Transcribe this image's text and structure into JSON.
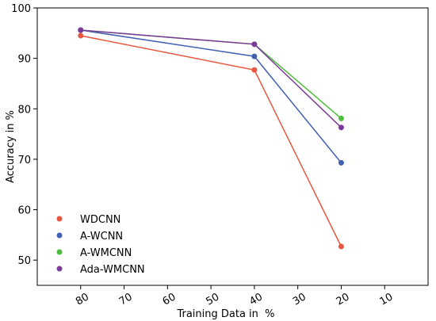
{
  "chart_data": {
    "type": "line",
    "title": "",
    "xlabel": "Training Data in  %",
    "ylabel": "Accuracy in %",
    "x": [
      80,
      40,
      20
    ],
    "xlim": [
      90,
      0
    ],
    "ylim": [
      45,
      100
    ],
    "xticks": [
      80,
      70,
      60,
      50,
      40,
      30,
      20,
      10
    ],
    "yticks": [
      50,
      60,
      70,
      80,
      90,
      100
    ],
    "grid": false,
    "legend_position": "lower-left",
    "series": [
      {
        "name": "WDCNN",
        "color": "#e8573f",
        "values": [
          94.5,
          87.7,
          52.7
        ]
      },
      {
        "name": "A-WCNN",
        "color": "#4060b0",
        "values": [
          95.6,
          90.4,
          69.3
        ]
      },
      {
        "name": "A-WMCNN",
        "color": "#4dbd3c",
        "values": [
          95.6,
          92.8,
          78.1
        ]
      },
      {
        "name": "Ada-WMCNN",
        "color": "#7b3a9a",
        "values": [
          95.6,
          92.8,
          76.3
        ]
      }
    ]
  }
}
